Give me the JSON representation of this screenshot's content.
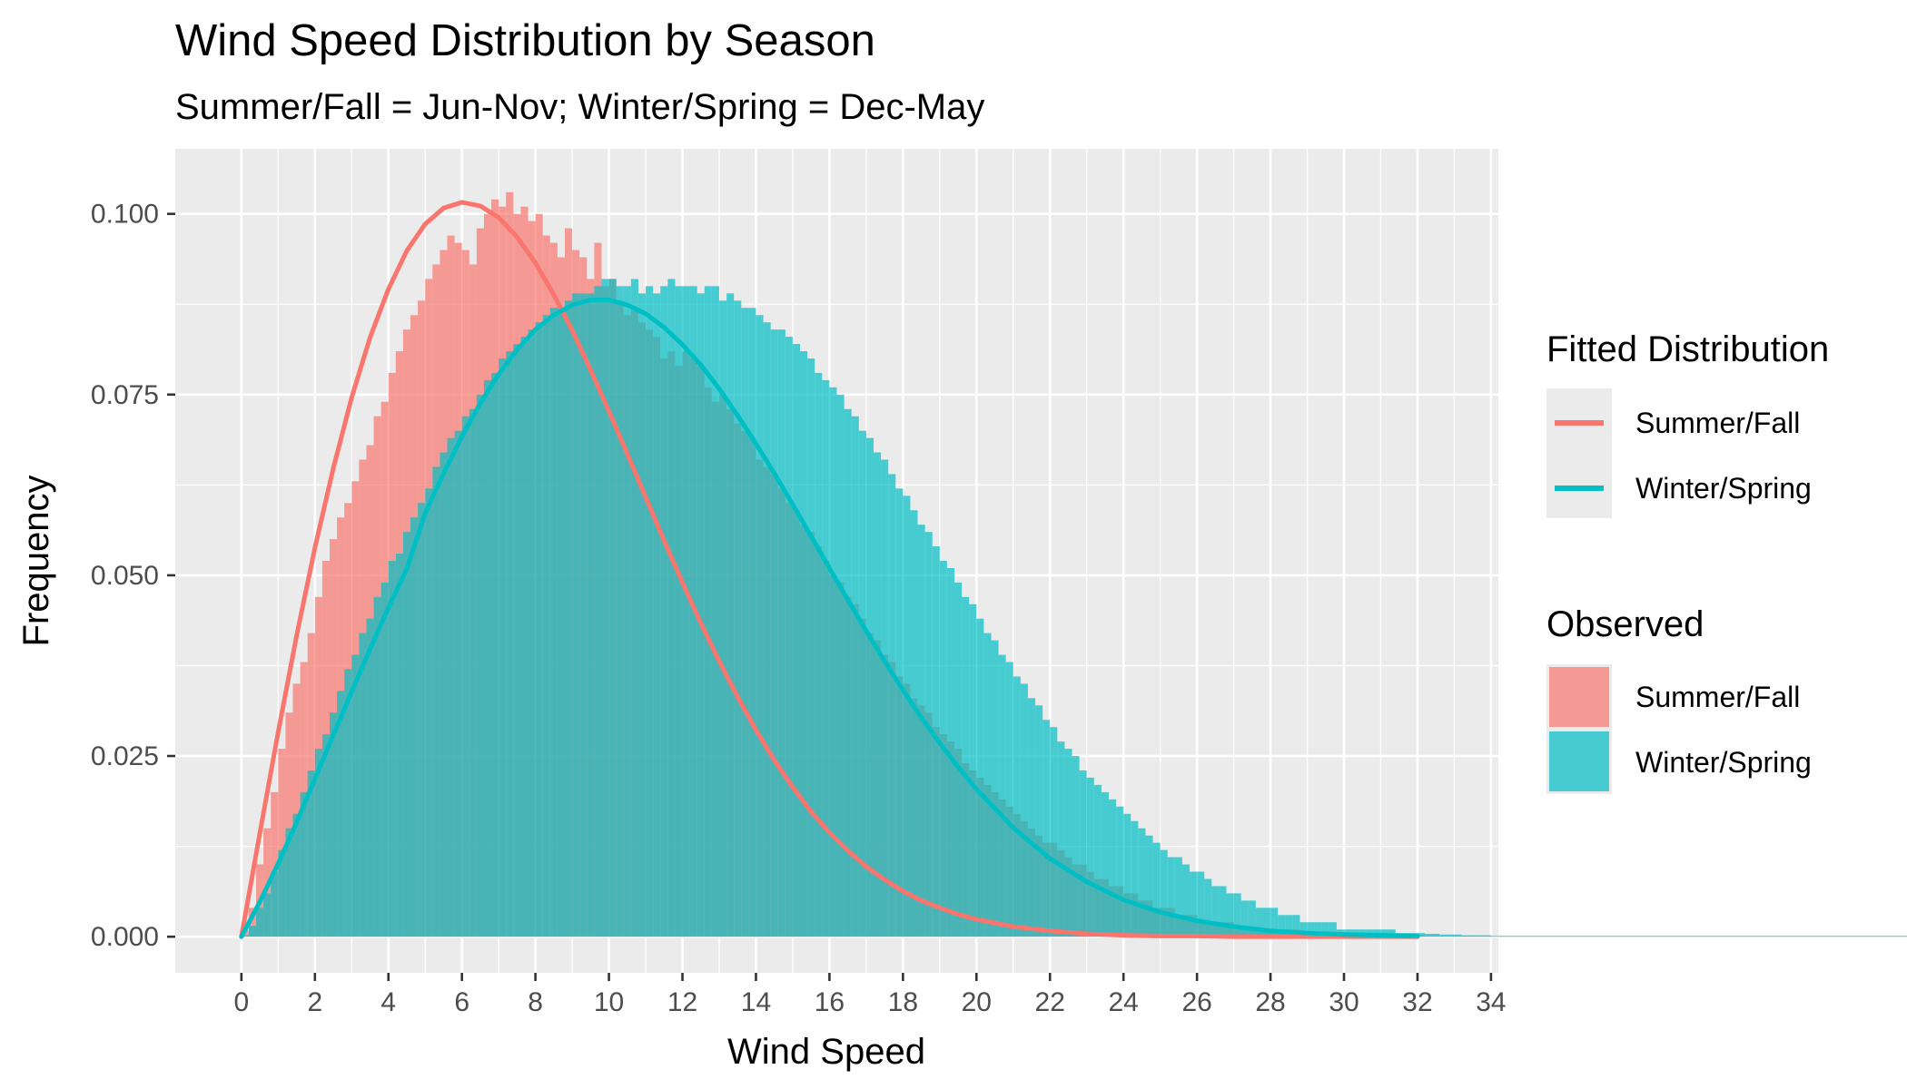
{
  "chart_data": {
    "type": "histogram_with_density",
    "title": "Wind Speed Distribution by Season",
    "subtitle": "Summer/Fall = Jun-Nov; Winter/Spring = Dec-May",
    "xlabel": "Wind Speed",
    "ylabel": "Frequency",
    "xlim": [
      -1.8,
      34.2
    ],
    "ylim": [
      -0.005,
      0.109
    ],
    "x_ticks": [
      0,
      2,
      4,
      6,
      8,
      10,
      12,
      14,
      16,
      18,
      20,
      22,
      24,
      26,
      28,
      30,
      32,
      34
    ],
    "y_ticks": [
      0.0,
      0.025,
      0.05,
      0.075,
      0.1
    ],
    "y_tick_labels": [
      "0.000",
      "0.025",
      "0.050",
      "0.075",
      "0.100"
    ],
    "grid": true,
    "legend_position": "right",
    "colors": {
      "summer": "#F8766D",
      "winter": "#00BFC4",
      "overlap": "#4db3b3",
      "panel": "#EBEBEB",
      "grid": "#ffffff"
    },
    "histogram": {
      "bin_width": 0.2,
      "series": [
        {
          "name": "Summer/Fall",
          "values": [
            0.0009,
            0.004,
            0.01,
            0.015,
            0.02,
            0.026,
            0.031,
            0.035,
            0.038,
            0.042,
            0.047,
            0.052,
            0.055,
            0.058,
            0.06,
            0.063,
            0.066,
            0.068,
            0.072,
            0.074,
            0.078,
            0.081,
            0.084,
            0.086,
            0.088,
            0.091,
            0.093,
            0.095,
            0.097,
            0.096,
            0.095,
            0.093,
            0.098,
            0.1,
            0.102,
            0.101,
            0.103,
            0.1,
            0.101,
            0.099,
            0.1,
            0.097,
            0.096,
            0.094,
            0.098,
            0.095,
            0.094,
            0.091,
            0.096,
            0.09,
            0.091,
            0.088,
            0.086,
            0.087,
            0.085,
            0.084,
            0.083,
            0.08,
            0.081,
            0.079,
            0.081,
            0.08,
            0.079,
            0.076,
            0.074,
            0.075,
            0.073,
            0.071,
            0.07,
            0.069,
            0.066,
            0.065,
            0.064,
            0.062,
            0.06,
            0.059,
            0.057,
            0.056,
            0.054,
            0.052,
            0.05,
            0.049,
            0.047,
            0.046,
            0.044,
            0.042,
            0.041,
            0.039,
            0.038,
            0.036,
            0.035,
            0.033,
            0.032,
            0.031,
            0.029,
            0.028,
            0.027,
            0.026,
            0.024,
            0.023,
            0.022,
            0.021,
            0.02,
            0.019,
            0.018,
            0.017,
            0.016,
            0.015,
            0.014,
            0.013,
            0.013,
            0.012,
            0.011,
            0.01,
            0.01,
            0.009,
            0.008,
            0.008,
            0.007,
            0.007,
            0.006,
            0.006,
            0.005,
            0.005,
            0.004,
            0.004,
            0.004,
            0.003,
            0.003,
            0.003,
            0.002,
            0.002,
            0.002,
            0.002,
            0.002,
            0.001,
            0.001,
            0.001,
            0.001,
            0.001,
            0.001,
            0.001,
            0.001,
            0.001,
            0.0005,
            0.0005,
            0.0005,
            0.0005,
            0.0005,
            0.0005,
            0.0004,
            0.0004,
            0.0004,
            0.0003,
            0.0003,
            0.0003,
            0.0002,
            0.0002,
            0.0002,
            0.0002,
            0.0002,
            0.0001,
            0.0001,
            0.0001,
            0.0001,
            0.0001,
            0.0001,
            0.0001,
            0.0001,
            0.0001,
            0.0001,
            0.0001,
            0.0001,
            0.0001,
            0.0001,
            0.0001,
            0.0001,
            0.0001,
            0.0001,
            0.0001,
            0.0001,
            0.0001,
            0.0001,
            0.0001,
            0.0001,
            0.0001,
            0.0001,
            0.0001,
            0.0001,
            0.0001,
            0.0001,
            0.0001,
            0.0001,
            0.0001,
            0.0001,
            0.0001,
            0.0001,
            0.0001,
            0.0001,
            0.0001,
            0.0001,
            0.0001,
            0.0001,
            0.0001,
            0.0001,
            0.0001,
            0.0001,
            0.0001,
            0.0001,
            0.0001,
            0.0001,
            0.0001,
            0.0001,
            0.0001,
            0.0001,
            0.0001,
            0.0001,
            0.0001,
            0.0001,
            0.0001,
            0.0001,
            0.0001,
            0.0001,
            0.0001,
            0.0001,
            0.0001,
            0.0001,
            0.0001,
            0.0001,
            0.0001,
            0.0001,
            0.0001,
            0.0001,
            0.0001,
            0.0001,
            0.0001,
            0.0001,
            0.0001,
            0.0001,
            0.0001,
            0.0001,
            0.0001,
            0.0001,
            0.0001,
            0.0001,
            0.0001,
            0.0001,
            0.0001,
            0.0001,
            0.0001,
            0.0001,
            0.0001,
            0.0001,
            0.0001,
            0.0001,
            0.0001,
            0.0001,
            0.0001,
            0.0001,
            0.0001,
            0.0001,
            0.0001,
            0.0001,
            0.0001,
            0.0001,
            0.0001,
            0.0001,
            0.0001,
            0.0001,
            0.0001,
            0.0001,
            0.0001,
            0.0001,
            0.0001,
            0.0001,
            0.0001,
            0.0001,
            0.0001,
            0.0001,
            0.0001,
            0.0001,
            0.0001,
            0.0001,
            0.0001,
            0.0001,
            0.0001,
            0.0001,
            0.0001,
            0.0001,
            0.0001,
            0.0001,
            0.0001,
            0.0001,
            0.0001,
            0.0001,
            0.0001,
            0.0001,
            0.0001,
            0.0001,
            0.0001,
            0.0001,
            0.0001,
            0.0001,
            0.0001,
            0.0001,
            0.0001,
            0.0001
          ]
        },
        {
          "name": "Winter/Spring",
          "values": [
            0.0002,
            0.0015,
            0.004,
            0.006,
            0.009,
            0.012,
            0.015,
            0.017,
            0.02,
            0.023,
            0.026,
            0.028,
            0.031,
            0.034,
            0.037,
            0.039,
            0.042,
            0.044,
            0.047,
            0.049,
            0.052,
            0.053,
            0.056,
            0.058,
            0.06,
            0.062,
            0.065,
            0.067,
            0.069,
            0.07,
            0.072,
            0.073,
            0.075,
            0.077,
            0.078,
            0.08,
            0.081,
            0.082,
            0.083,
            0.084,
            0.085,
            0.086,
            0.087,
            0.087,
            0.088,
            0.089,
            0.089,
            0.089,
            0.09,
            0.091,
            0.091,
            0.09,
            0.09,
            0.091,
            0.089,
            0.09,
            0.089,
            0.09,
            0.091,
            0.09,
            0.09,
            0.09,
            0.089,
            0.09,
            0.09,
            0.088,
            0.089,
            0.088,
            0.087,
            0.087,
            0.086,
            0.085,
            0.084,
            0.084,
            0.083,
            0.082,
            0.081,
            0.08,
            0.078,
            0.077,
            0.076,
            0.075,
            0.073,
            0.072,
            0.07,
            0.069,
            0.067,
            0.066,
            0.064,
            0.062,
            0.061,
            0.059,
            0.057,
            0.056,
            0.054,
            0.052,
            0.051,
            0.049,
            0.047,
            0.046,
            0.044,
            0.042,
            0.041,
            0.039,
            0.038,
            0.036,
            0.035,
            0.033,
            0.032,
            0.03,
            0.029,
            0.027,
            0.026,
            0.025,
            0.023,
            0.022,
            0.021,
            0.02,
            0.019,
            0.018,
            0.017,
            0.016,
            0.015,
            0.014,
            0.013,
            0.012,
            0.011,
            0.011,
            0.01,
            0.009,
            0.009,
            0.008,
            0.007,
            0.007,
            0.006,
            0.006,
            0.005,
            0.005,
            0.004,
            0.004,
            0.004,
            0.003,
            0.003,
            0.003,
            0.002,
            0.002,
            0.002,
            0.002,
            0.002,
            0.001,
            0.001,
            0.001,
            0.001,
            0.001,
            0.001,
            0.001,
            0.001,
            0.0005,
            0.0005,
            0.0005,
            0.0005,
            0.0004,
            0.0004,
            0.0003,
            0.0003,
            0.0003,
            0.0002,
            0.0002,
            0.0002,
            0.0002,
            0.0001,
            0.0001,
            0.0001,
            0.0001,
            0.0001,
            0.0001,
            0.0001,
            0.0001,
            0.0001,
            0.0001,
            0.0001,
            0.0001,
            0.0001,
            0.0001,
            0.0001,
            0.0001,
            0.0001,
            0.0001,
            0.0001,
            0.0001,
            0.0001,
            0.0001,
            0.0001,
            0.0001,
            0.0001,
            0.0001,
            0.0001,
            0.0001,
            0.0001,
            0.0001,
            0.0001,
            0.0001,
            0.0001,
            0.0001,
            0.0001,
            0.0001,
            0.0001,
            0.0001,
            0.0001,
            0.0001,
            0.0001,
            0.0001,
            0.0001,
            0.0001,
            0.0001,
            0.0001,
            0.0001,
            0.0001,
            0.0001,
            0.0001,
            0.0001,
            0.0001,
            0.0001,
            0.0001,
            0.0001,
            0.0001,
            0.0001,
            0.0001,
            0.0001,
            0.0001,
            0.0001,
            0.0001,
            0.0001,
            0.0001,
            0.0001,
            0.0001,
            0.0001,
            0.0001,
            0.0001,
            0.0001,
            0.0001,
            0.0001,
            0.0001,
            0.0001,
            0.0001,
            0.0001,
            0.0001,
            0.0001,
            0.0001,
            0.0001,
            0.0001,
            0.0001,
            0.0001,
            0.0001,
            0.0001,
            0.0001,
            0.0001,
            0.0001,
            0.0001,
            0.0001,
            0.0001,
            0.0001,
            0.0001,
            0.0001,
            0.0001,
            0.0001,
            0.0001,
            0.0001,
            0.0001,
            0.0001,
            0.0001,
            0.0001,
            0.0001,
            0.0001,
            0.0001,
            0.0001,
            0.0001,
            0.0001,
            0.0001,
            0.0001,
            0.0001,
            0.0001,
            0.0001,
            0.0001,
            0.0001,
            0.0001,
            0.0001,
            0.0001,
            0.0001,
            0.0001,
            0.0001,
            0.0001,
            0.0001,
            0.0001,
            0.0001,
            0.0001,
            0.0001,
            0.0001,
            0.0001,
            0.0001,
            0.0001,
            0.0001,
            0.0001,
            0.0001,
            0.0001,
            0.0001,
            0.0001,
            0.0001,
            0.0001,
            0.0001,
            0.0001,
            0.0001,
            0.0001,
            0.0001,
            0.0001
          ]
        }
      ]
    },
    "density": {
      "x": [
        0,
        0.5,
        1,
        1.5,
        2,
        2.5,
        3,
        3.5,
        4,
        4.5,
        5,
        5.5,
        6,
        6.5,
        7,
        7.5,
        8,
        8.5,
        9,
        9.5,
        10,
        10.5,
        11,
        11.5,
        12,
        12.5,
        13,
        13.5,
        14,
        14.5,
        15,
        15.5,
        16,
        16.5,
        17,
        17.5,
        18,
        18.5,
        19,
        19.5,
        20,
        21,
        22,
        23,
        24,
        25,
        26,
        27,
        28,
        29,
        30,
        31,
        32
      ],
      "series": [
        {
          "name": "Summer/Fall",
          "values": [
            0.0,
            0.0143,
            0.0283,
            0.0416,
            0.0538,
            0.0648,
            0.0746,
            0.0829,
            0.0896,
            0.0949,
            0.0986,
            0.1008,
            0.1016,
            0.1011,
            0.0995,
            0.0968,
            0.0932,
            0.0888,
            0.0839,
            0.0784,
            0.0727,
            0.0668,
            0.0608,
            0.0548,
            0.049,
            0.0434,
            0.0381,
            0.0332,
            0.0286,
            0.0244,
            0.0207,
            0.0173,
            0.0144,
            0.0119,
            0.0097,
            0.0079,
            0.0063,
            0.005,
            0.004,
            0.0031,
            0.0024,
            0.0014,
            0.0008,
            0.0004,
            0.0002,
            0.0001,
            0.0001,
            0.0,
            0.0,
            0.0,
            0.0,
            0.0,
            0.0
          ]
        },
        {
          "name": "Winter/Spring",
          "values": [
            0.0,
            0.0048,
            0.0101,
            0.0158,
            0.0218,
            0.0279,
            0.0339,
            0.0398,
            0.0455,
            0.0509,
            0.0586,
            0.0641,
            0.0692,
            0.0738,
            0.0778,
            0.0812,
            0.084,
            0.086,
            0.0874,
            0.0881,
            0.0881,
            0.0874,
            0.0862,
            0.0843,
            0.0819,
            0.0791,
            0.0758,
            0.0721,
            0.0682,
            0.0641,
            0.0598,
            0.0554,
            0.051,
            0.0466,
            0.0423,
            0.0381,
            0.0341,
            0.0303,
            0.0268,
            0.0235,
            0.0204,
            0.0151,
            0.0108,
            0.0076,
            0.0051,
            0.0034,
            0.0022,
            0.0014,
            0.0008,
            0.0005,
            0.0003,
            0.0002,
            0.0001
          ]
        }
      ]
    }
  },
  "legend": {
    "fitted_title": "Fitted Distribution",
    "observed_title": "Observed",
    "items": [
      "Summer/Fall",
      "Winter/Spring"
    ]
  }
}
